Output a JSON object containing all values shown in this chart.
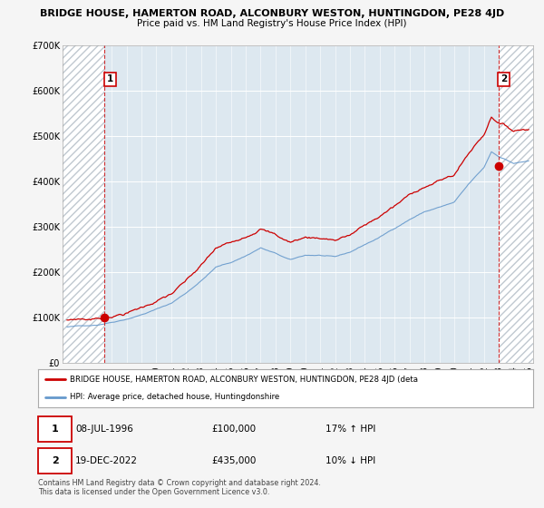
{
  "title": "BRIDGE HOUSE, HAMERTON ROAD, ALCONBURY WESTON, HUNTINGDON, PE28 4JD",
  "subtitle": "Price paid vs. HM Land Registry's House Price Index (HPI)",
  "ylim": [
    0,
    700000
  ],
  "yticks": [
    0,
    100000,
    200000,
    300000,
    400000,
    500000,
    600000,
    700000
  ],
  "sale1_x": 1996.53,
  "sale1_y": 100000,
  "sale2_x": 2022.96,
  "sale2_y": 435000,
  "xmin": 1993.7,
  "xmax": 2025.3,
  "legend_line1": "BRIDGE HOUSE, HAMERTON ROAD, ALCONBURY WESTON, HUNTINGDON, PE28 4JD (deta",
  "legend_line2": "HPI: Average price, detached house, Huntingdonshire",
  "date1": "08-JUL-1996",
  "price1": "£100,000",
  "hpi1": "17% ↑ HPI",
  "date2": "19-DEC-2022",
  "price2": "£435,000",
  "hpi2": "10% ↓ HPI",
  "footnote": "Contains HM Land Registry data © Crown copyright and database right 2024.\nThis data is licensed under the Open Government Licence v3.0.",
  "line1_color": "#cc0000",
  "line2_color": "#6699cc",
  "plot_bg": "#dde8f0",
  "fig_bg": "#f5f5f5",
  "hatch_color": "#c0c8d0"
}
